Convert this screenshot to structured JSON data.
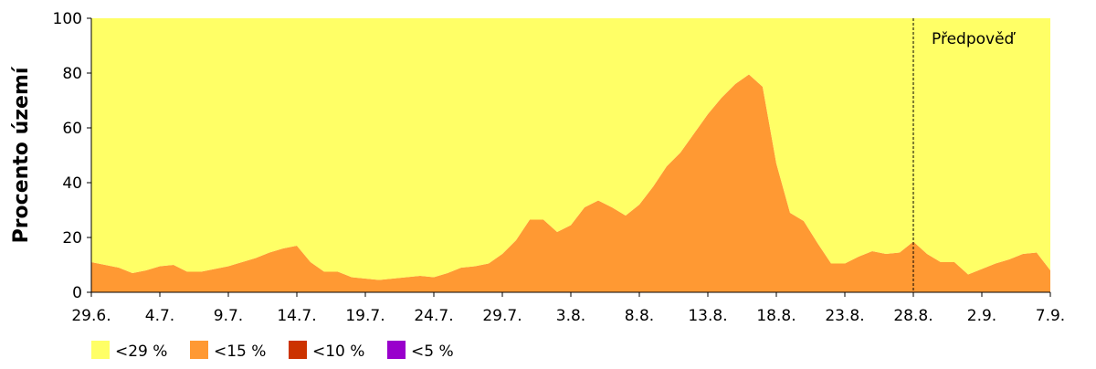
{
  "chart_data": {
    "type": "stacked_area",
    "ylabel": "Procento území",
    "categories": [
      "29.6.",
      null,
      null,
      null,
      null,
      "4.7.",
      null,
      null,
      null,
      null,
      "9.7.",
      null,
      null,
      null,
      null,
      "14.7.",
      null,
      null,
      null,
      null,
      "19.7.",
      null,
      null,
      null,
      null,
      "24.7.",
      null,
      null,
      null,
      null,
      "29.7.",
      null,
      null,
      null,
      null,
      "3.8.",
      null,
      null,
      null,
      null,
      "8.8.",
      null,
      null,
      null,
      null,
      "13.8.",
      null,
      null,
      null,
      null,
      "18.8.",
      null,
      null,
      null,
      null,
      "23.8.",
      null,
      null,
      null,
      null,
      "28.8.",
      null,
      null,
      null,
      null,
      "2.9.",
      null,
      null,
      null,
      null,
      "7.9."
    ],
    "series": [
      {
        "name": "<29 %",
        "color": "#ffff66",
        "values": [
          89,
          90,
          91,
          93,
          92,
          90.5,
          90,
          92.5,
          92.5,
          91.5,
          90.5,
          89,
          87.5,
          85.5,
          84,
          83,
          89,
          92.5,
          92.5,
          94.5,
          95,
          95.5,
          95,
          94.5,
          94,
          94.5,
          93,
          91,
          90.5,
          89.5,
          86,
          81,
          73.5,
          73.5,
          78,
          75.5,
          69,
          66.5,
          69,
          72,
          68,
          61.5,
          54,
          49,
          42,
          35,
          29,
          24,
          20.5,
          25,
          53,
          71,
          74,
          82,
          89.5,
          89.5,
          87,
          85,
          86,
          85.5,
          81.5,
          86,
          89,
          89,
          93.5,
          91.5,
          89.5,
          88,
          86,
          85.5,
          92
        ]
      },
      {
        "name": "<15 %",
        "color": "#ff9933",
        "values": [
          11,
          10,
          9,
          7,
          8,
          9.5,
          10,
          7.5,
          7.5,
          8.5,
          9.5,
          11,
          12.5,
          14.5,
          16,
          17,
          11,
          7.5,
          7.5,
          5.5,
          5,
          4.5,
          5,
          5.5,
          6,
          5.5,
          7,
          9,
          9.5,
          10.5,
          14,
          19,
          26.5,
          26.5,
          22,
          24.5,
          31,
          33.5,
          31,
          28,
          32,
          38.5,
          46,
          51,
          58,
          65,
          71,
          76,
          79.5,
          75,
          47,
          29,
          26,
          18,
          10.5,
          10.5,
          13,
          15,
          14,
          14.5,
          18.5,
          14,
          11,
          11,
          6.5,
          8.5,
          10.5,
          12,
          14,
          14.5,
          8
        ]
      },
      {
        "name": "<10 %",
        "color": "#cc3300",
        "values": [
          0,
          0,
          0,
          0,
          0,
          0,
          0,
          0,
          0,
          0,
          0,
          0,
          0,
          0,
          0,
          0,
          0,
          0,
          0,
          0,
          0,
          0,
          0,
          0,
          0,
          0,
          0,
          0,
          0,
          0,
          0,
          0,
          0,
          0,
          0,
          0,
          0,
          0,
          0,
          0,
          0,
          0,
          0,
          0,
          0,
          0,
          0,
          0,
          0,
          0,
          0,
          0,
          0,
          0,
          0,
          0,
          0,
          0,
          0,
          0,
          0,
          0,
          0,
          0,
          0,
          0,
          0,
          0,
          0,
          0,
          0
        ]
      },
      {
        "name": "<5 %",
        "color": "#9900cc",
        "values": [
          0,
          0,
          0,
          0,
          0,
          0,
          0,
          0,
          0,
          0,
          0,
          0,
          0,
          0,
          0,
          0,
          0,
          0,
          0,
          0,
          0,
          0,
          0,
          0,
          0,
          0,
          0,
          0,
          0,
          0,
          0,
          0,
          0,
          0,
          0,
          0,
          0,
          0,
          0,
          0,
          0,
          0,
          0,
          0,
          0,
          0,
          0,
          0,
          0,
          0,
          0,
          0,
          0,
          0,
          0,
          0,
          0,
          0,
          0,
          0,
          0,
          0,
          0,
          0,
          0,
          0,
          0,
          0,
          0,
          0,
          0
        ]
      }
    ],
    "ylim": [
      0,
      100
    ],
    "yticks": [
      0,
      20,
      40,
      60,
      80,
      100
    ],
    "annotation": {
      "text": "Předpověď",
      "at": "28.8."
    }
  }
}
